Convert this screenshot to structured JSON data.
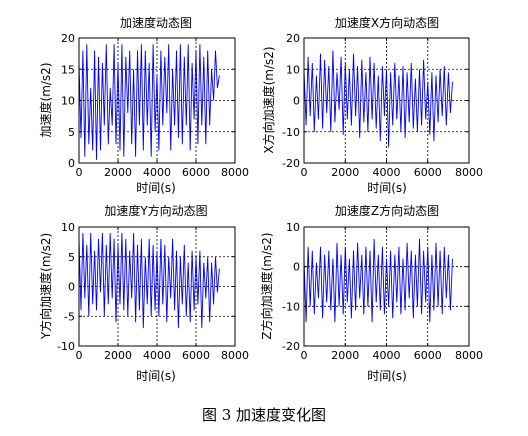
{
  "figure": {
    "caption": "图 3  加速度变化图"
  },
  "chart_data": [
    {
      "type": "line",
      "title": "加速度动态图",
      "xlabel": "时间(s)",
      "ylabel": "加速度(m/s2)",
      "xlim": [
        0,
        8000
      ],
      "ylim": [
        0,
        20
      ],
      "xticks": [
        0,
        2000,
        4000,
        6000,
        8000
      ],
      "yticks": [
        0,
        5,
        10,
        15,
        20
      ],
      "grid": true,
      "line_color": "#0000ff",
      "series": [
        {
          "x": [
            0,
            100,
            200,
            300,
            400,
            500,
            600,
            700,
            800,
            900,
            1000,
            1100,
            1200,
            1300,
            1400,
            1500,
            1600,
            1700,
            1800,
            1900,
            2000,
            2100,
            2200,
            2300,
            2400,
            2500,
            2600,
            2700,
            2800,
            2900,
            3000,
            3100,
            3200,
            3300,
            3400,
            3500,
            3600,
            3700,
            3800,
            3900,
            4000,
            4100,
            4200,
            4300,
            4400,
            4500,
            4600,
            4700,
            4800,
            4900,
            5000,
            5100,
            5200,
            5300,
            5400,
            5500,
            5600,
            5700,
            5800,
            5900,
            6000,
            6100,
            6200,
            6300,
            6400,
            6500,
            6600,
            6700,
            6800,
            6900,
            7000,
            7100,
            7200
          ],
          "values": [
            16,
            4,
            18,
            1,
            19,
            3,
            12,
            2,
            18,
            0.5,
            17,
            2,
            16,
            6,
            19,
            3,
            12,
            6,
            19,
            3,
            16,
            2,
            19,
            1,
            17,
            8,
            18,
            3,
            15,
            1,
            18,
            6,
            19,
            2,
            18,
            6,
            16,
            1,
            19,
            5,
            14,
            2,
            18,
            6,
            17,
            8,
            19,
            2,
            15,
            6,
            18,
            4,
            19,
            3,
            17,
            6,
            19,
            2,
            16,
            7,
            18,
            3,
            19,
            6,
            17,
            3,
            18,
            6,
            15,
            10,
            18,
            12,
            14
          ]
        }
      ]
    },
    {
      "type": "line",
      "title": "加速度X方向动态图",
      "xlabel": "时间(s)",
      "ylabel": "X方向加速度(m/s2)",
      "xlim": [
        0,
        8000
      ],
      "ylim": [
        -20,
        20
      ],
      "xticks": [
        0,
        2000,
        4000,
        6000,
        8000
      ],
      "yticks": [
        -20,
        -10,
        0,
        10,
        20
      ],
      "grid": true,
      "line_color": "#0000ff",
      "series": [
        {
          "x": [
            0,
            100,
            200,
            300,
            400,
            500,
            600,
            700,
            800,
            900,
            1000,
            1100,
            1200,
            1300,
            1400,
            1500,
            1600,
            1700,
            1800,
            1900,
            2000,
            2100,
            2200,
            2300,
            2400,
            2500,
            2600,
            2700,
            2800,
            2900,
            3000,
            3100,
            3200,
            3300,
            3400,
            3500,
            3600,
            3700,
            3800,
            3900,
            4000,
            4100,
            4200,
            4300,
            4400,
            4500,
            4600,
            4700,
            4800,
            4900,
            5000,
            5100,
            5200,
            5300,
            5400,
            5500,
            5600,
            5700,
            5800,
            5900,
            6000,
            6100,
            6200,
            6300,
            6400,
            6500,
            6600,
            6700,
            6800,
            6900,
            7000,
            7100,
            7200
          ],
          "values": [
            10,
            -8,
            14,
            -5,
            12,
            -10,
            8,
            -6,
            15,
            -9,
            13,
            -4,
            11,
            -10,
            16,
            -7,
            9,
            -3,
            14,
            -11,
            12,
            -6,
            10,
            -8,
            15,
            -5,
            11,
            -12,
            13,
            -7,
            9,
            -10,
            14,
            -6,
            12,
            -9,
            8,
            -13,
            11,
            -5,
            10,
            -15,
            9,
            -8,
            12,
            -6,
            8,
            -10,
            11,
            -12,
            9,
            -7,
            12,
            -9,
            7,
            -10,
            10,
            -8,
            13,
            -6,
            6,
            -11,
            9,
            -13,
            8,
            -7,
            10,
            -5,
            11,
            -8,
            9,
            -4,
            6
          ]
        }
      ]
    },
    {
      "type": "line",
      "title": "加速度Y方向动态图",
      "xlabel": "时间(s)",
      "ylabel": "Y方向加速度(m/s2)",
      "xlim": [
        0,
        8000
      ],
      "ylim": [
        -10,
        10
      ],
      "xticks": [
        0,
        2000,
        4000,
        6000,
        8000
      ],
      "yticks": [
        -10,
        -5,
        0,
        5,
        10
      ],
      "grid": true,
      "line_color": "#0000ff",
      "series": [
        {
          "x": [
            0,
            100,
            200,
            300,
            400,
            500,
            600,
            700,
            800,
            900,
            1000,
            1100,
            1200,
            1300,
            1400,
            1500,
            1600,
            1700,
            1800,
            1900,
            2000,
            2100,
            2200,
            2300,
            2400,
            2500,
            2600,
            2700,
            2800,
            2900,
            3000,
            3100,
            3200,
            3300,
            3400,
            3500,
            3600,
            3700,
            3800,
            3900,
            4000,
            4100,
            4200,
            4300,
            4400,
            4500,
            4600,
            4700,
            4800,
            4900,
            5000,
            5100,
            5200,
            5300,
            5400,
            5500,
            5600,
            5700,
            5800,
            5900,
            6000,
            6100,
            6200,
            6300,
            6400,
            6500,
            6600,
            6700,
            6800,
            6900,
            7000,
            7100,
            7200
          ],
          "values": [
            8,
            -4,
            9,
            -2,
            7,
            -5,
            9,
            -3,
            6,
            -4,
            8,
            -1,
            9,
            -5,
            7,
            -3,
            9,
            -2,
            8,
            -6,
            7,
            -3,
            9,
            -4,
            8,
            -5,
            6,
            -2,
            9,
            -6,
            7,
            -4,
            8,
            -7,
            5,
            -3,
            8,
            -5,
            7,
            -4,
            6,
            -5,
            8,
            -3,
            7,
            -6,
            5,
            -2,
            8,
            -4,
            6,
            -7,
            5,
            -3,
            7,
            -5,
            4,
            -6,
            6,
            -4,
            5,
            -3,
            6,
            -7,
            4,
            -2,
            5,
            -6,
            4,
            -3,
            5,
            -1,
            3
          ]
        }
      ]
    },
    {
      "type": "line",
      "title": "加速度Z方向动态图",
      "xlabel": "时间(s)",
      "ylabel": "Z方向加速度(m/s2)",
      "xlim": [
        0,
        8000
      ],
      "ylim": [
        -20,
        10
      ],
      "xticks": [
        0,
        2000,
        4000,
        6000,
        8000
      ],
      "yticks": [
        -20,
        -10,
        0,
        10
      ],
      "grid": true,
      "line_color": "#0000ff",
      "series": [
        {
          "x": [
            0,
            100,
            200,
            300,
            400,
            500,
            600,
            700,
            800,
            900,
            1000,
            1100,
            1200,
            1300,
            1400,
            1500,
            1600,
            1700,
            1800,
            1900,
            2000,
            2100,
            2200,
            2300,
            2400,
            2500,
            2600,
            2700,
            2800,
            2900,
            3000,
            3100,
            3200,
            3300,
            3400,
            3500,
            3600,
            3700,
            3800,
            3900,
            4000,
            4100,
            4200,
            4300,
            4400,
            4500,
            4600,
            4700,
            4800,
            4900,
            5000,
            5100,
            5200,
            5300,
            5400,
            5500,
            5600,
            5700,
            5800,
            5900,
            6000,
            6100,
            6200,
            6300,
            6400,
            6500,
            6600,
            6700,
            6800,
            6900,
            7000,
            7100,
            7200
          ],
          "values": [
            2,
            -14,
            5,
            -10,
            4,
            -12,
            1,
            -8,
            5,
            -13,
            3,
            -9,
            4,
            -11,
            2,
            -14,
            6,
            -10,
            3,
            -12,
            5,
            -9,
            2,
            -13,
            4,
            -11,
            6,
            -8,
            3,
            -12,
            5,
            -10,
            4,
            -14,
            7,
            -9,
            3,
            -11,
            5,
            -12,
            2,
            -10,
            4,
            -13,
            3,
            -9,
            5,
            -12,
            2,
            -11,
            6,
            -8,
            4,
            -13,
            3,
            -10,
            7,
            -12,
            4,
            -9,
            5,
            -14,
            3,
            -11,
            6,
            -10,
            4,
            -12,
            5,
            -8,
            3,
            -11,
            2
          ]
        }
      ]
    }
  ]
}
